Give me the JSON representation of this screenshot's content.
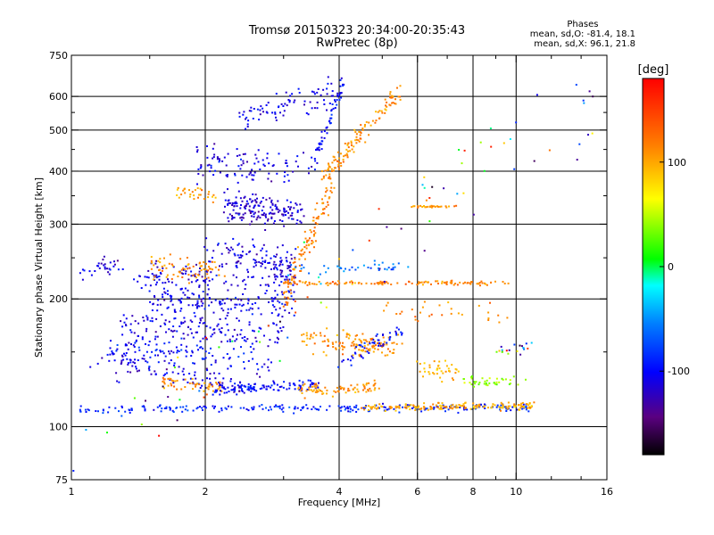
{
  "header": {
    "title_line1": "Tromsø 20150323 20:34:00-20:35:43",
    "title_line2": "RwPretec (8p)"
  },
  "phases": {
    "title": "Phases",
    "o_line": "mean, sd,O: -81.4, 18.1",
    "x_line": "mean, sd,X:  96.1, 21.8"
  },
  "chart_data": {
    "type": "scatter",
    "xlabel": "Frequency [MHz]",
    "ylabel": "Stationary phase Virtual Height [km]",
    "xscale": "log",
    "yscale": "log",
    "xlim": [
      1,
      16
    ],
    "ylim": [
      75,
      750
    ],
    "x_ticks": [
      1,
      2,
      4,
      6,
      8,
      10,
      16
    ],
    "x_tick_labels": [
      "1",
      "2",
      "4",
      "6",
      "8",
      "10",
      "16"
    ],
    "x_minor_ticks": [
      1.5,
      3,
      5,
      7,
      9,
      12,
      14
    ],
    "y_ticks": [
      75,
      100,
      200,
      300,
      400,
      500,
      600,
      750
    ],
    "y_tick_labels": [
      "75",
      "100",
      "200",
      "300",
      "400",
      "500",
      "600",
      "750"
    ],
    "y_minor_ticks": [
      150,
      250,
      350,
      450,
      550
    ],
    "grid_x": [
      2,
      4,
      6,
      8,
      10
    ],
    "grid_y": [
      100,
      200,
      300,
      400,
      500,
      600
    ],
    "colorbar": {
      "label": "[deg]",
      "range": [
        -180,
        180
      ],
      "ticks": [
        -100,
        0,
        100
      ],
      "tick_labels": [
        "-100",
        "0",
        "100"
      ]
    },
    "traces": [
      {
        "from": [
          1.05,
          110
        ],
        "to": [
          11.0,
          111
        ],
        "phase": -90,
        "count": 240,
        "spread": 0.03
      },
      {
        "from": [
          4.5,
          111
        ],
        "to": [
          11.0,
          112
        ],
        "phase": 100,
        "count": 160,
        "spread": 0.03
      },
      {
        "from": [
          1.1,
          145
        ],
        "to": [
          2.4,
          125
        ],
        "phase": -110,
        "count": 90,
        "spread": 0.08
      },
      {
        "from": [
          1.6,
          128
        ],
        "to": [
          2.2,
          123
        ],
        "phase": 110,
        "count": 50,
        "spread": 0.05
      },
      {
        "from": [
          2.1,
          122
        ],
        "to": [
          3.6,
          126
        ],
        "phase": -100,
        "count": 110,
        "spread": 0.04
      },
      {
        "from": [
          3.2,
          122
        ],
        "to": [
          5.0,
          124
        ],
        "phase": 110,
        "count": 80,
        "spread": 0.05
      },
      {
        "from": [
          1.2,
          155
        ],
        "to": [
          2.8,
          140
        ],
        "phase": -100,
        "count": 120,
        "spread": 0.12
      },
      {
        "from": [
          1.3,
          175
        ],
        "to": [
          3.0,
          165
        ],
        "phase": -110,
        "count": 140,
        "spread": 0.12
      },
      {
        "from": [
          1.5,
          200
        ],
        "to": [
          3.2,
          195
        ],
        "phase": -105,
        "count": 150,
        "spread": 0.12
      },
      {
        "from": [
          1.4,
          225
        ],
        "to": [
          3.2,
          222
        ],
        "phase": -110,
        "count": 120,
        "spread": 0.1
      },
      {
        "from": [
          1.05,
          225
        ],
        "to": [
          1.3,
          245
        ],
        "phase": -110,
        "count": 30,
        "spread": 0.08
      },
      {
        "from": [
          2.0,
          260
        ],
        "to": [
          3.2,
          240
        ],
        "phase": -110,
        "count": 110,
        "spread": 0.12
      },
      {
        "from": [
          2.2,
          330
        ],
        "to": [
          3.3,
          320
        ],
        "phase": -115,
        "count": 170,
        "spread": 0.13
      },
      {
        "from": [
          1.9,
          420
        ],
        "to": [
          3.5,
          400
        ],
        "phase": -110,
        "count": 100,
        "spread": 0.15
      },
      {
        "from": [
          2.4,
          540
        ],
        "to": [
          4.0,
          620
        ],
        "phase": -105,
        "count": 80,
        "spread": 0.12
      },
      {
        "from": [
          3.5,
          420
        ],
        "to": [
          4.1,
          650
        ],
        "phase": -100,
        "count": 60,
        "spread": 0.06
      },
      {
        "from": [
          3.6,
          380
        ],
        "to": [
          5.5,
          620
        ],
        "phase": 110,
        "count": 120,
        "spread": 0.08
      },
      {
        "from": [
          3.0,
          200
        ],
        "to": [
          3.9,
          380
        ],
        "phase": 115,
        "count": 110,
        "spread": 0.12
      },
      {
        "from": [
          1.5,
          240
        ],
        "to": [
          2.2,
          230
        ],
        "phase": 110,
        "count": 70,
        "spread": 0.1
      },
      {
        "from": [
          1.7,
          360
        ],
        "to": [
          2.1,
          350
        ],
        "phase": 105,
        "count": 30,
        "spread": 0.06
      },
      {
        "from": [
          3.3,
          160
        ],
        "to": [
          5.5,
          155
        ],
        "phase": 110,
        "count": 130,
        "spread": 0.1
      },
      {
        "from": [
          4.0,
          140
        ],
        "to": [
          5.5,
          170
        ],
        "phase": -100,
        "count": 50,
        "spread": 0.06
      },
      {
        "from": [
          3.0,
          218
        ],
        "to": [
          9.5,
          218
        ],
        "phase": 115,
        "count": 130,
        "spread": 0.015
      },
      {
        "from": [
          3.0,
          235
        ],
        "to": [
          5.8,
          240
        ],
        "phase": -60,
        "count": 40,
        "spread": 0.04
      },
      {
        "from": [
          5.8,
          330
        ],
        "to": [
          7.4,
          330
        ],
        "phase": 110,
        "count": 30,
        "spread": 0.01
      },
      {
        "from": [
          6.0,
          140
        ],
        "to": [
          7.5,
          135
        ],
        "phase": 90,
        "count": 40,
        "spread": 0.08
      },
      {
        "from": [
          7.6,
          128
        ],
        "to": [
          10.5,
          128
        ],
        "phase": 40,
        "count": 40,
        "spread": 0.04
      },
      {
        "from": [
          9.0,
          150
        ],
        "to": [
          10.8,
          155
        ],
        "phase": 0,
        "count": 20,
        "spread": 0.05
      },
      {
        "from": [
          5.0,
          190
        ],
        "to": [
          9.5,
          185
        ],
        "phase": 110,
        "count": 30,
        "spread": 0.1
      },
      {
        "from": [
          1.0,
          80
        ],
        "to": [
          16.0,
          700
        ],
        "phase": 0,
        "count": 90,
        "spread": 0.5
      }
    ]
  }
}
